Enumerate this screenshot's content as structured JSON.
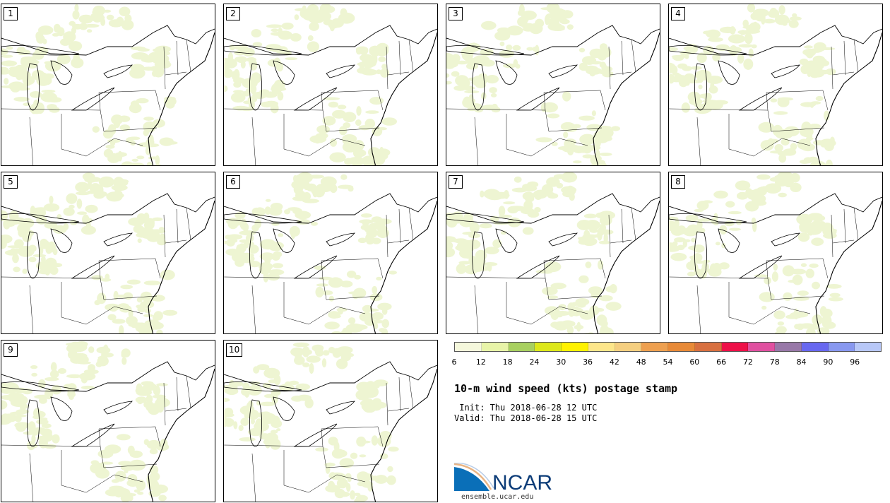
{
  "panels": [
    {
      "label": "1"
    },
    {
      "label": "2"
    },
    {
      "label": "3"
    },
    {
      "label": "4"
    },
    {
      "label": "5"
    },
    {
      "label": "6"
    },
    {
      "label": "7"
    },
    {
      "label": "8"
    },
    {
      "label": "9"
    },
    {
      "label": "10"
    }
  ],
  "colorbar": {
    "ticks": [
      "6",
      "12",
      "18",
      "24",
      "30",
      "36",
      "42",
      "48",
      "54",
      "60",
      "66",
      "72",
      "78",
      "84",
      "90",
      "96"
    ],
    "colors": [
      "#f5f8dc",
      "#e8f4a8",
      "#a8d060",
      "#dde81a",
      "#fff200",
      "#fde68a",
      "#f5cf80",
      "#eea050",
      "#e88a38",
      "#d87040",
      "#ee1048",
      "#e050a0",
      "#9878a8",
      "#6868f0",
      "#8898f0",
      "#b8c8f8"
    ]
  },
  "title": "10-m wind speed (kts) postage stamp",
  "init": " Init: Thu 2018-06-28 12 UTC",
  "valid": "Valid: Thu 2018-06-28 15 UTC",
  "logo": {
    "text": "NCAR",
    "url": "ensemble.ucar.edu"
  },
  "colors": {
    "wind_fill": "#eef5d2",
    "boundary": "#000000"
  }
}
